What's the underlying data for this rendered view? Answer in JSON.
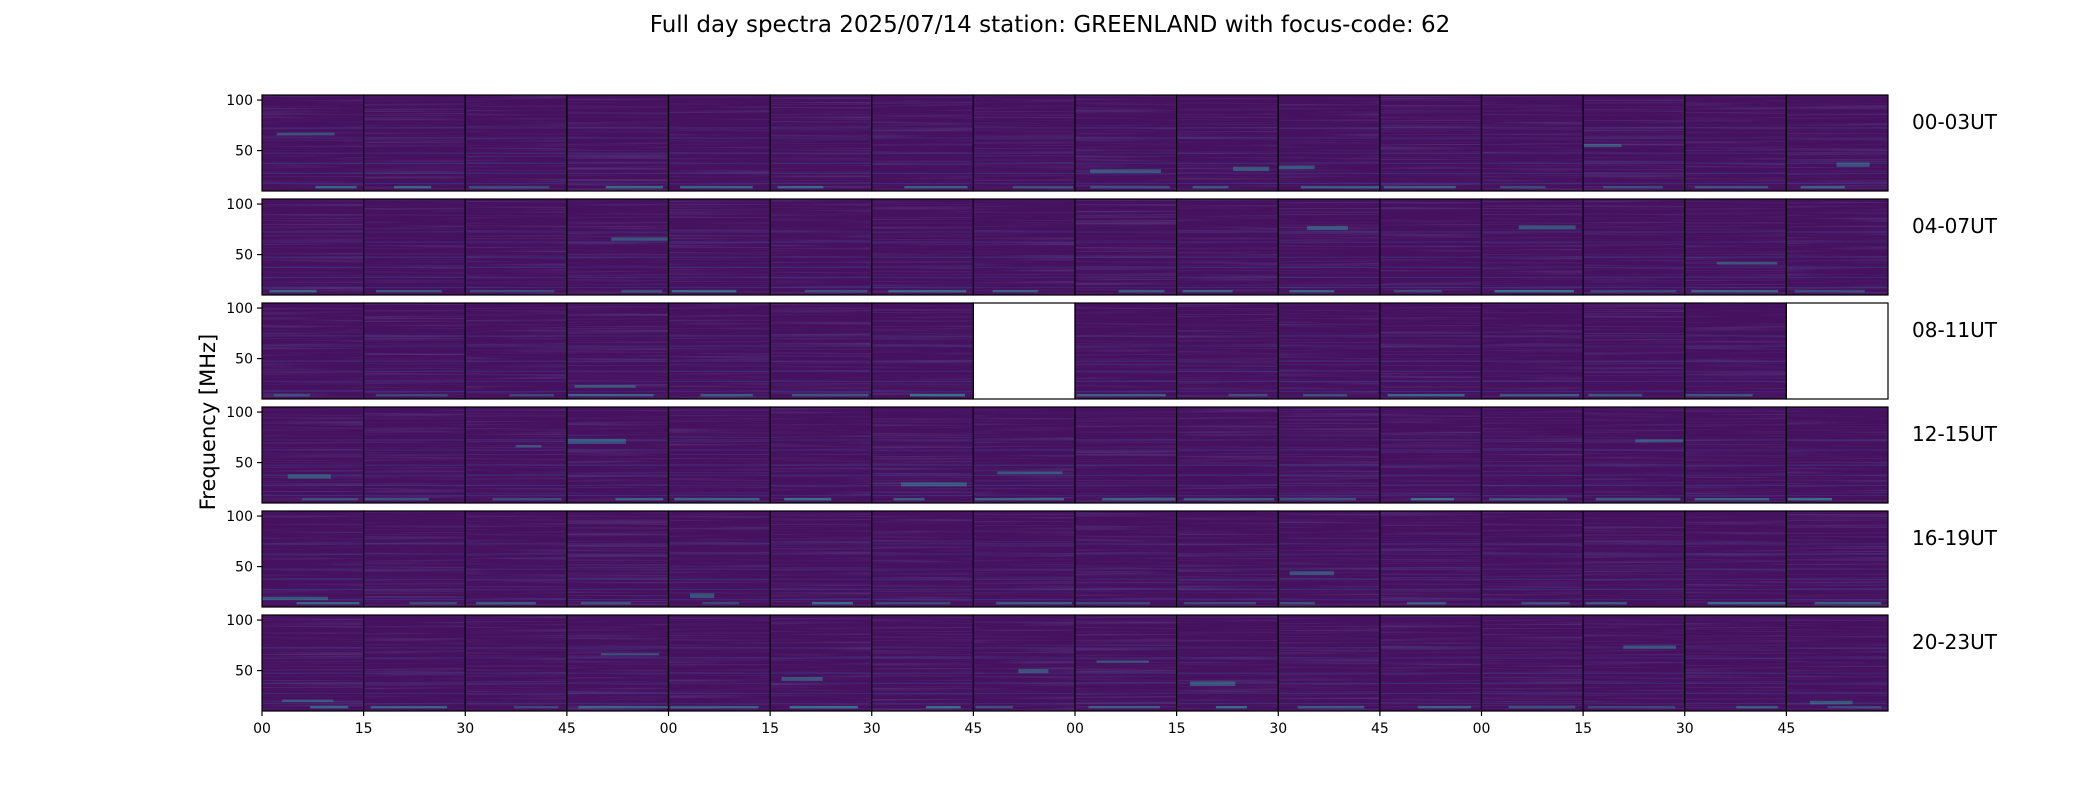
{
  "title": "Full day spectra 2025/07/14 station: GREENLAND with focus-code: 62",
  "chart_data": {
    "type": "heatmap",
    "title": "Full day spectra 2025/07/14 station: GREENLAND with focus-code: 62",
    "ylabel": "Frequency [MHz]",
    "xlabel": "",
    "y_ticks": [
      "100",
      "50"
    ],
    "y_tick_values": [
      100,
      50
    ],
    "ylim": [
      10,
      105
    ],
    "x_ticks": [
      "00",
      "15",
      "30",
      "45",
      "00",
      "15",
      "30",
      "45",
      "00",
      "15",
      "30",
      "45",
      "00",
      "15",
      "30",
      "45"
    ],
    "rows": [
      {
        "label": "00-03UT",
        "missing_panels": []
      },
      {
        "label": "04-07UT",
        "missing_panels": []
      },
      {
        "label": "08-11UT",
        "missing_panels": [
          7,
          15
        ]
      },
      {
        "label": "12-15UT",
        "missing_panels": []
      },
      {
        "label": "16-19UT",
        "missing_panels": []
      },
      {
        "label": "20-23UT",
        "missing_panels": []
      }
    ],
    "panels_per_row": 16,
    "colormap": "viridis",
    "colors": {
      "background": "#46125f",
      "band": "#3b3f88",
      "bright": "#2fa4a0"
    },
    "grid": false
  }
}
